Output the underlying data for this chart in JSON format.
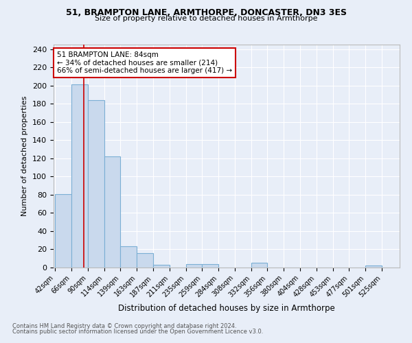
{
  "title1": "51, BRAMPTON LANE, ARMTHORPE, DONCASTER, DN3 3ES",
  "title2": "Size of property relative to detached houses in Armthorpe",
  "xlabel": "Distribution of detached houses by size in Armthorpe",
  "ylabel": "Number of detached properties",
  "bin_labels": [
    "42sqm",
    "66sqm",
    "90sqm",
    "114sqm",
    "139sqm",
    "163sqm",
    "187sqm",
    "211sqm",
    "235sqm",
    "259sqm",
    "284sqm",
    "308sqm",
    "332sqm",
    "356sqm",
    "380sqm",
    "404sqm",
    "428sqm",
    "453sqm",
    "477sqm",
    "501sqm",
    "525sqm"
  ],
  "bar_heights": [
    81,
    201,
    184,
    122,
    23,
    16,
    3,
    0,
    4,
    4,
    0,
    0,
    5,
    0,
    0,
    0,
    0,
    0,
    0,
    2,
    0
  ],
  "bar_color": "#c9d9ed",
  "bar_edgecolor": "#7bafd4",
  "bar_linewidth": 0.8,
  "vline_color": "#cc0000",
  "annotation_text": "51 BRAMPTON LANE: 84sqm\n← 34% of detached houses are smaller (214)\n66% of semi-detached houses are larger (417) →",
  "annotation_box_color": "#ffffff",
  "annotation_box_edgecolor": "#cc0000",
  "ylim": [
    0,
    245
  ],
  "yticks": [
    0,
    20,
    40,
    60,
    80,
    100,
    120,
    140,
    160,
    180,
    200,
    220,
    240
  ],
  "background_color": "#e8eef8",
  "grid_color": "#ffffff",
  "footnote1": "Contains HM Land Registry data © Crown copyright and database right 2024.",
  "footnote2": "Contains public sector information licensed under the Open Government Licence v3.0.",
  "bin_width": 24,
  "vline_x_bin": 1.75
}
